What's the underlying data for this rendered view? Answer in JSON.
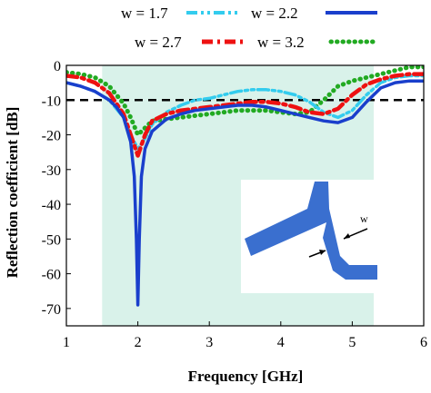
{
  "chart_data": {
    "type": "line",
    "xlabel": "Frequency [GHz]",
    "ylabel": "Reflection coefficient  [dB]",
    "xlim": [
      1,
      6
    ],
    "ylim": [
      -75,
      0
    ],
    "xticks": [
      1,
      2,
      3,
      4,
      5,
      6
    ],
    "yticks": [
      0,
      -10,
      -20,
      -30,
      -40,
      -50,
      -60,
      -70
    ],
    "reference_line_y": -10,
    "shaded_band_x": [
      1.5,
      5.3
    ],
    "legend_position": "top",
    "series": [
      {
        "name": "w = 1.7",
        "color": "#33ccee",
        "style": "dash-dot-dot",
        "x": [
          1.0,
          1.2,
          1.4,
          1.6,
          1.8,
          1.9,
          2.0,
          2.1,
          2.2,
          2.4,
          2.6,
          2.8,
          3.0,
          3.2,
          3.4,
          3.6,
          3.8,
          4.0,
          4.2,
          4.4,
          4.6,
          4.8,
          5.0,
          5.2,
          5.4,
          5.6,
          5.8,
          6.0
        ],
        "y": [
          -5.0,
          -6.0,
          -7.5,
          -10.0,
          -15.0,
          -20.0,
          -24.0,
          -21.0,
          -17.0,
          -13.5,
          -11.5,
          -10.0,
          -9.5,
          -8.5,
          -7.5,
          -7.0,
          -7.0,
          -7.5,
          -8.5,
          -10.5,
          -13.5,
          -15.0,
          -13.0,
          -8.5,
          -5.0,
          -3.5,
          -3.0,
          -3.0
        ]
      },
      {
        "name": "w = 2.2",
        "color": "#1a3fcc",
        "style": "solid",
        "x": [
          1.0,
          1.2,
          1.4,
          1.6,
          1.7,
          1.8,
          1.9,
          1.95,
          1.98,
          2.0,
          2.02,
          2.05,
          2.1,
          2.2,
          2.4,
          2.6,
          2.8,
          3.0,
          3.2,
          3.4,
          3.6,
          3.8,
          4.0,
          4.2,
          4.4,
          4.6,
          4.8,
          5.0,
          5.2,
          5.4,
          5.6,
          5.8,
          6.0
        ],
        "y": [
          -5.0,
          -6.0,
          -7.5,
          -10.0,
          -12.0,
          -15.0,
          -22.0,
          -32.0,
          -50.0,
          -69.0,
          -50.0,
          -32.0,
          -24.0,
          -19.0,
          -15.5,
          -14.0,
          -13.0,
          -12.5,
          -12.0,
          -11.5,
          -11.5,
          -12.0,
          -13.0,
          -14.0,
          -15.0,
          -16.0,
          -16.5,
          -15.0,
          -10.5,
          -6.5,
          -5.0,
          -4.5,
          -4.5
        ]
      },
      {
        "name": "w = 2.7",
        "color": "#ee1111",
        "style": "dash-dot",
        "x": [
          1.0,
          1.2,
          1.4,
          1.6,
          1.8,
          1.9,
          2.0,
          2.1,
          2.2,
          2.4,
          2.6,
          2.8,
          3.0,
          3.2,
          3.4,
          3.6,
          3.8,
          4.0,
          4.2,
          4.4,
          4.6,
          4.8,
          5.0,
          5.2,
          5.4,
          5.6,
          5.8,
          6.0
        ],
        "y": [
          -3.0,
          -3.5,
          -5.0,
          -8.0,
          -14.0,
          -20.0,
          -26.0,
          -20.0,
          -16.0,
          -14.0,
          -13.0,
          -12.5,
          -12.0,
          -11.5,
          -11.0,
          -10.5,
          -10.5,
          -11.0,
          -12.0,
          -13.5,
          -14.0,
          -12.5,
          -8.5,
          -5.5,
          -4.0,
          -3.0,
          -2.5,
          -2.5
        ]
      },
      {
        "name": "w = 3.2",
        "color": "#22aa22",
        "style": "dotted",
        "x": [
          1.0,
          1.2,
          1.4,
          1.6,
          1.8,
          1.9,
          2.0,
          2.1,
          2.2,
          2.4,
          2.6,
          2.8,
          3.0,
          3.2,
          3.4,
          3.6,
          3.8,
          4.0,
          4.2,
          4.4,
          4.6,
          4.8,
          5.0,
          5.2,
          5.4,
          5.6,
          5.8,
          6.0
        ],
        "y": [
          -2.0,
          -2.5,
          -3.5,
          -6.0,
          -11.0,
          -15.0,
          -20.0,
          -18.0,
          -16.0,
          -15.5,
          -15.0,
          -14.5,
          -14.0,
          -13.5,
          -13.0,
          -13.0,
          -13.0,
          -13.5,
          -14.0,
          -13.5,
          -10.0,
          -6.0,
          -4.5,
          -3.5,
          -2.5,
          -1.5,
          -0.5,
          -0.5
        ]
      }
    ]
  },
  "inset": {
    "label": "w"
  }
}
